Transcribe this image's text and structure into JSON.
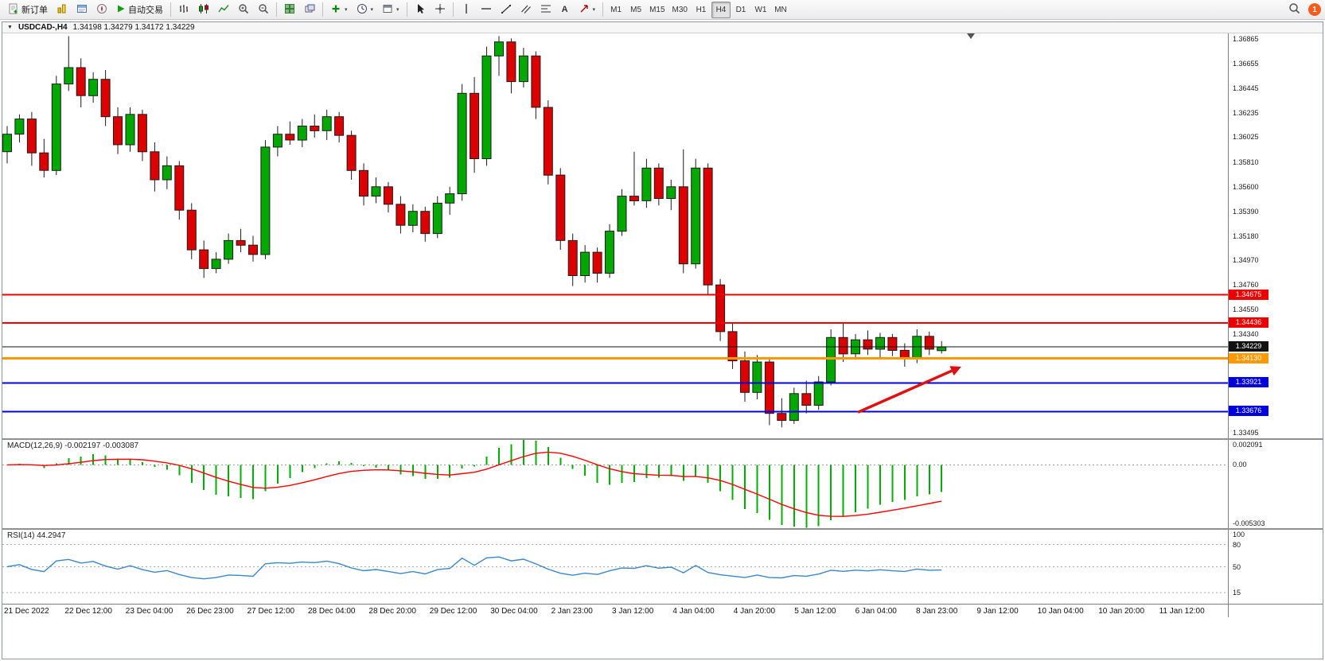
{
  "toolbar": {
    "new_order_label": "新订单",
    "autotrading_label": "自动交易",
    "timeframes": [
      "M1",
      "M5",
      "M15",
      "M30",
      "H1",
      "H4",
      "D1",
      "W1",
      "MN"
    ],
    "active_timeframe": "H4",
    "notification_count": "1"
  },
  "icons": {
    "dropdown_caret": "▾",
    "text_tool": "A"
  },
  "titlebar": {
    "collapse": "▼",
    "symbol": "USDCAD-,H4",
    "ohlc": "1.34198 1.34279 1.34172 1.34229"
  },
  "chart_data": [
    {
      "type": "candlestick",
      "title": "USDCAD-,H4",
      "symbol": "USDCAD",
      "timeframe": "H4",
      "ylim": [
        1.33447,
        1.36913
      ],
      "y_ticks": [
        "1.36865",
        "1.36655",
        "1.36445",
        "1.36235",
        "1.36025",
        "1.35810",
        "1.35600",
        "1.35390",
        "1.35180",
        "1.34970",
        "1.34760",
        "1.34550",
        "1.34340",
        "1.33495"
      ],
      "x_labels": [
        "21 Dec 2022",
        "22 Dec 12:00",
        "23 Dec 04:00",
        "26 Dec 23:00",
        "27 Dec 12:00",
        "28 Dec 04:00",
        "28 Dec 20:00",
        "29 Dec 12:00",
        "30 Dec 04:00",
        "2 Jan 23:00",
        "3 Jan 12:00",
        "4 Jan 04:00",
        "4 Jan 20:00",
        "5 Jan 12:00",
        "6 Jan 04:00",
        "8 Jan 23:00",
        "9 Jan 12:00",
        "10 Jan 04:00",
        "10 Jan 20:00",
        "11 Jan 12:00"
      ],
      "colors": {
        "up": "#00a800",
        "down": "#dd0000",
        "outline": "#1c1c1c",
        "background": "#ffffff"
      },
      "hlines": [
        {
          "price": 1.34675,
          "color": "#ee0000",
          "width": 2,
          "badge_bg": "#ee0000",
          "label": "1.34675"
        },
        {
          "price": 1.34436,
          "color": "#ee0000",
          "width": 2,
          "badge_bg": "#ee0000",
          "label": "1.34436"
        },
        {
          "price": 1.34229,
          "color": "#111111",
          "width": 1,
          "badge_bg": "#111111",
          "label": "1.34229"
        },
        {
          "price": 1.3413,
          "color": "#ff9900",
          "width": 3,
          "badge_bg": "#ff9900",
          "label": "1.34130"
        },
        {
          "price": 1.33921,
          "color": "#0000dd",
          "width": 2,
          "badge_bg": "#0000dd",
          "label": "1.33921"
        },
        {
          "price": 1.33676,
          "color": "#0000dd",
          "width": 2,
          "badge_bg": "#0000dd",
          "label": "1.33676"
        }
      ],
      "arrow": {
        "color": "#e01010",
        "from": {
          "bar": 69.2,
          "price": 1.3367
        },
        "to": {
          "bar": 77.6,
          "price": 1.3406
        }
      },
      "candles_ohlc": [
        [
          1.359,
          1.3612,
          1.358,
          1.3605
        ],
        [
          1.3605,
          1.3622,
          1.3598,
          1.3618
        ],
        [
          1.3618,
          1.3624,
          1.3578,
          1.3589
        ],
        [
          1.3589,
          1.3601,
          1.3568,
          1.3574
        ],
        [
          1.3574,
          1.3655,
          1.357,
          1.3648
        ],
        [
          1.3648,
          1.3689,
          1.3642,
          1.3662
        ],
        [
          1.3662,
          1.367,
          1.3628,
          1.3638
        ],
        [
          1.3638,
          1.3658,
          1.3632,
          1.3652
        ],
        [
          1.3652,
          1.366,
          1.3612,
          1.362
        ],
        [
          1.362,
          1.3628,
          1.3588,
          1.3596
        ],
        [
          1.3596,
          1.3628,
          1.359,
          1.3622
        ],
        [
          1.3622,
          1.3626,
          1.3582,
          1.359
        ],
        [
          1.359,
          1.3598,
          1.3556,
          1.3566
        ],
        [
          1.3566,
          1.3586,
          1.3558,
          1.3578
        ],
        [
          1.3578,
          1.3582,
          1.3532,
          1.354
        ],
        [
          1.354,
          1.3546,
          1.3498,
          1.3506
        ],
        [
          1.3506,
          1.3514,
          1.3482,
          1.349
        ],
        [
          1.349,
          1.3504,
          1.3486,
          1.3498
        ],
        [
          1.3498,
          1.352,
          1.3494,
          1.3514
        ],
        [
          1.3514,
          1.3524,
          1.3504,
          1.351
        ],
        [
          1.351,
          1.3518,
          1.3496,
          1.3502
        ],
        [
          1.3502,
          1.36,
          1.3498,
          1.3594
        ],
        [
          1.3594,
          1.3612,
          1.3586,
          1.3605
        ],
        [
          1.3605,
          1.3616,
          1.3596,
          1.36
        ],
        [
          1.36,
          1.3618,
          1.3594,
          1.3612
        ],
        [
          1.3612,
          1.3622,
          1.3602,
          1.3608
        ],
        [
          1.3608,
          1.3626,
          1.36,
          1.362
        ],
        [
          1.362,
          1.3624,
          1.3598,
          1.3604
        ],
        [
          1.3604,
          1.3608,
          1.3566,
          1.3574
        ],
        [
          1.3574,
          1.358,
          1.3544,
          1.3552
        ],
        [
          1.3552,
          1.3568,
          1.3546,
          1.356
        ],
        [
          1.356,
          1.3564,
          1.3538,
          1.3545
        ],
        [
          1.3545,
          1.3552,
          1.352,
          1.3527
        ],
        [
          1.3527,
          1.3545,
          1.3521,
          1.3539
        ],
        [
          1.3539,
          1.3543,
          1.3513,
          1.352
        ],
        [
          1.352,
          1.3552,
          1.3516,
          1.3546
        ],
        [
          1.3546,
          1.356,
          1.3536,
          1.3554
        ],
        [
          1.3554,
          1.3648,
          1.3548,
          1.364
        ],
        [
          1.364,
          1.3654,
          1.3572,
          1.3584
        ],
        [
          1.3584,
          1.368,
          1.3578,
          1.3672
        ],
        [
          1.3672,
          1.3689,
          1.3655,
          1.3684
        ],
        [
          1.3684,
          1.3687,
          1.364,
          1.365
        ],
        [
          1.365,
          1.3679,
          1.3645,
          1.3672
        ],
        [
          1.3672,
          1.3676,
          1.3618,
          1.3628
        ],
        [
          1.3628,
          1.3634,
          1.3562,
          1.357
        ],
        [
          1.357,
          1.3576,
          1.3506,
          1.3514
        ],
        [
          1.3514,
          1.352,
          1.3475,
          1.3484
        ],
        [
          1.3484,
          1.351,
          1.3478,
          1.3504
        ],
        [
          1.3504,
          1.3508,
          1.3478,
          1.3486
        ],
        [
          1.3486,
          1.3528,
          1.3482,
          1.3522
        ],
        [
          1.3522,
          1.3558,
          1.3518,
          1.3552
        ],
        [
          1.3552,
          1.359,
          1.3544,
          1.3548
        ],
        [
          1.3548,
          1.3584,
          1.3542,
          1.3576
        ],
        [
          1.3576,
          1.358,
          1.3544,
          1.355
        ],
        [
          1.355,
          1.3566,
          1.354,
          1.356
        ],
        [
          1.356,
          1.3592,
          1.3486,
          1.3494
        ],
        [
          1.3494,
          1.3584,
          1.349,
          1.3576
        ],
        [
          1.3576,
          1.358,
          1.3468,
          1.3476
        ],
        [
          1.3476,
          1.3481,
          1.3428,
          1.3436
        ],
        [
          1.3436,
          1.3444,
          1.3404,
          1.3411
        ],
        [
          1.3411,
          1.3419,
          1.3376,
          1.3384
        ],
        [
          1.3384,
          1.3416,
          1.3378,
          1.341
        ],
        [
          1.341,
          1.3414,
          1.3356,
          1.3366
        ],
        [
          1.3366,
          1.3379,
          1.3354,
          1.336
        ],
        [
          1.336,
          1.3388,
          1.3357,
          1.3383
        ],
        [
          1.3383,
          1.3394,
          1.3366,
          1.3373
        ],
        [
          1.3373,
          1.3398,
          1.3369,
          1.3393
        ],
        [
          1.3393,
          1.3438,
          1.339,
          1.3431
        ],
        [
          1.3431,
          1.3444,
          1.341,
          1.3417
        ],
        [
          1.3417,
          1.3434,
          1.3412,
          1.3429
        ],
        [
          1.3429,
          1.3437,
          1.3416,
          1.3421
        ],
        [
          1.3421,
          1.3435,
          1.3413,
          1.3431
        ],
        [
          1.3431,
          1.3434,
          1.3415,
          1.342
        ],
        [
          1.342,
          1.3426,
          1.3406,
          1.3413
        ],
        [
          1.3413,
          1.3438,
          1.3409,
          1.3432
        ],
        [
          1.3432,
          1.3436,
          1.3416,
          1.3421
        ],
        [
          1.34198,
          1.34279,
          1.34172,
          1.34229
        ]
      ]
    },
    {
      "type": "bar",
      "name": "MACD",
      "params": "12,26,9",
      "label": "MACD(12,26,9) -0.002197 -0.003087",
      "current_macd": -0.002197,
      "current_signal": -0.003087,
      "ylim": [
        -0.005303,
        0.002091
      ],
      "y_ticks": [
        "0.002091",
        "0.00",
        "-0.005303"
      ],
      "histogram_color": "#00b000",
      "signal_color": "#ff0000",
      "note": "histogram = EMA12-EMA26 of closes, signal = EMA9 of histogram"
    },
    {
      "type": "line",
      "name": "RSI",
      "params": "14",
      "label": "RSI(14) 44.2947",
      "current": 44.2947,
      "ylim": [
        0,
        100
      ],
      "levels": [
        80,
        50,
        15
      ],
      "y_ticks": [
        "100",
        "80",
        "50",
        "15"
      ],
      "line_color": "#3b87c8",
      "note": "RSI(14) of closes"
    }
  ]
}
